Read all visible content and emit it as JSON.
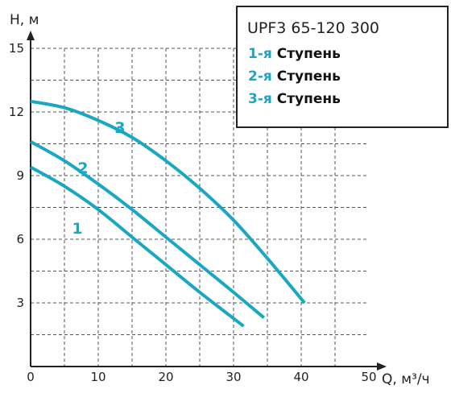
{
  "chart_data": {
    "type": "line",
    "title": "UPF3 65-120 300",
    "xlabel": "Q, м³/ч",
    "ylabel": "H, м",
    "xlim": [
      0,
      50
    ],
    "ylim": [
      0,
      15
    ],
    "x_ticks": [
      0,
      10,
      20,
      30,
      40,
      50
    ],
    "y_ticks": [
      3,
      6,
      9,
      12,
      15
    ],
    "grid": true,
    "legend_position": "top-right",
    "legend": [
      {
        "num": "1-я",
        "word": "Ступень"
      },
      {
        "num": "2-я",
        "word": "Ступень"
      },
      {
        "num": "3-я",
        "word": "Ступень"
      }
    ],
    "series": [
      {
        "name": "1",
        "x": [
          0,
          5,
          10,
          15,
          20,
          25,
          31.5
        ],
        "y": [
          9.4,
          8.5,
          7.4,
          6.1,
          4.8,
          3.5,
          1.9
        ]
      },
      {
        "name": "2",
        "x": [
          0,
          5,
          10,
          15,
          20,
          25,
          30,
          34.5
        ],
        "y": [
          10.6,
          9.7,
          8.6,
          7.4,
          6.1,
          4.8,
          3.5,
          2.3
        ]
      },
      {
        "name": "3",
        "x": [
          0,
          5,
          10,
          15,
          20,
          25,
          30,
          35,
          40.5
        ],
        "y": [
          12.5,
          12.2,
          11.6,
          10.8,
          9.7,
          8.4,
          6.9,
          5.1,
          3.0
        ]
      }
    ],
    "line_color": "#1aa7c4"
  }
}
